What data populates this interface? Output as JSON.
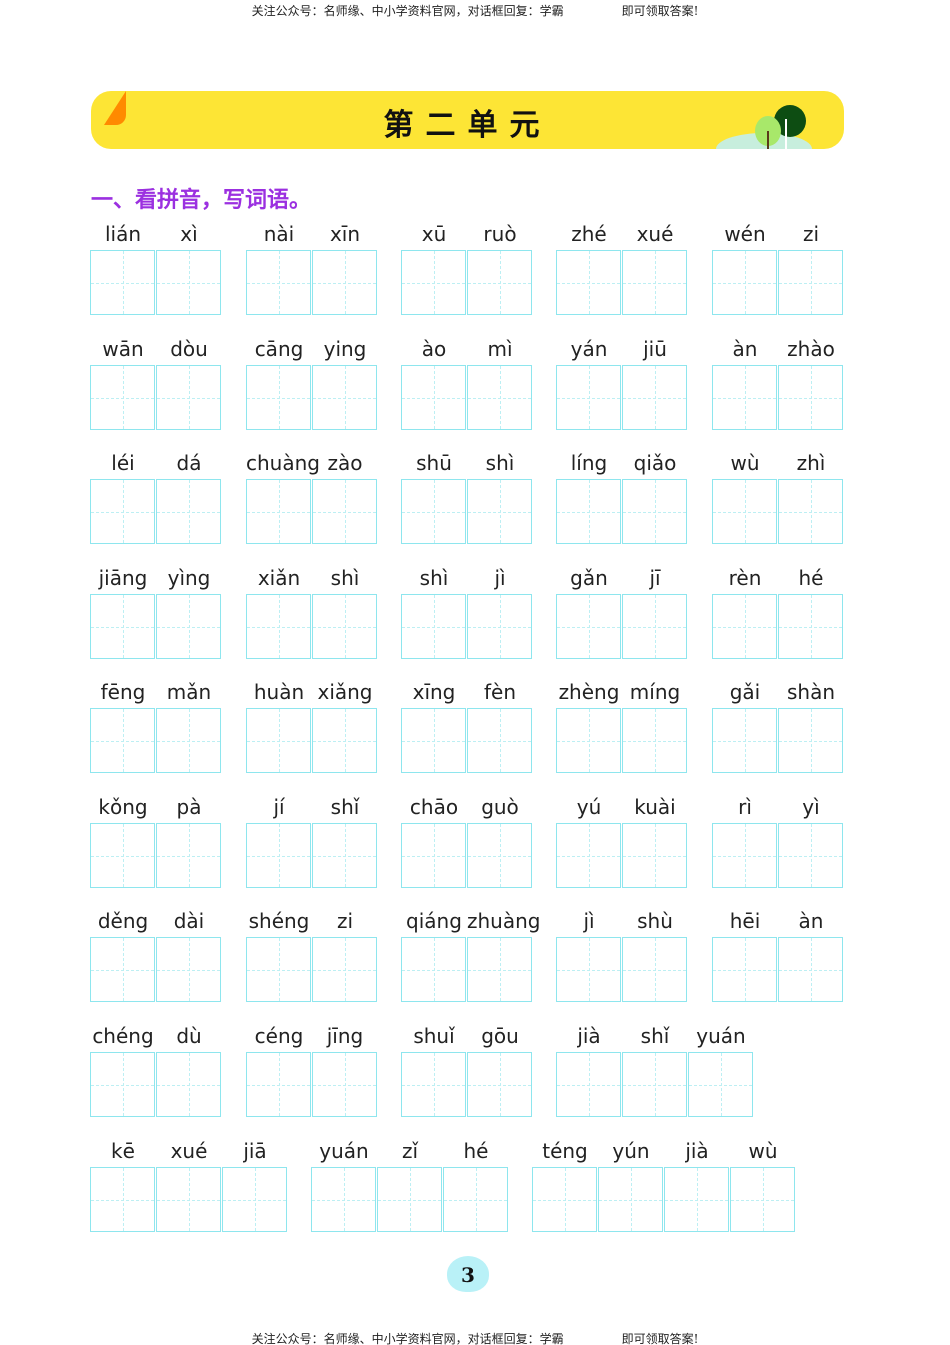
{
  "header_note": {
    "left": "关注公众号：名师缘、中小学资料官网，对话框回复：学霸",
    "right": "即可领取答案!"
  },
  "banner": {
    "title": "第二单元",
    "accent_color": "#fde535"
  },
  "section_title": "一、看拼音，写词语。",
  "rows": [
    [
      [
        "lián",
        "xì"
      ],
      [
        "nài",
        "xīn"
      ],
      [
        "xū",
        "ruò"
      ],
      [
        "zhé",
        "xué"
      ],
      [
        "wén",
        "zi"
      ]
    ],
    [
      [
        "wān",
        "dòu"
      ],
      [
        "cāng",
        "ying"
      ],
      [
        "ào",
        "mì"
      ],
      [
        "yán",
        "jiū"
      ],
      [
        "àn",
        "zhào"
      ]
    ],
    [
      [
        "léi",
        "dá"
      ],
      [
        "chuàng",
        "zào"
      ],
      [
        "shū",
        "shì"
      ],
      [
        "líng",
        "qiǎo"
      ],
      [
        "wù",
        "zhì"
      ]
    ],
    [
      [
        "jiāng",
        "yìng"
      ],
      [
        "xiǎn",
        "shì"
      ],
      [
        "shì",
        "jì"
      ],
      [
        "gǎn",
        "jī"
      ],
      [
        "rèn",
        "hé"
      ]
    ],
    [
      [
        "fēng",
        "mǎn"
      ],
      [
        "huàn",
        "xiǎng"
      ],
      [
        "xīng",
        "fèn"
      ],
      [
        "zhèng",
        "míng"
      ],
      [
        "gǎi",
        "shàn"
      ]
    ],
    [
      [
        "kǒng",
        "pà"
      ],
      [
        "jí",
        "shǐ"
      ],
      [
        "chāo",
        "guò"
      ],
      [
        "yú",
        "kuài"
      ],
      [
        "rì",
        "yì"
      ]
    ],
    [
      [
        "děng",
        "dài"
      ],
      [
        "shéng",
        "zi"
      ],
      [
        "qiáng",
        "zhuàng"
      ],
      [
        "jì",
        "shù"
      ],
      [
        "hēi",
        "àn"
      ]
    ],
    [
      [
        "chéng",
        "dù"
      ],
      [
        "céng",
        "jīng"
      ],
      [
        "shuǐ",
        "gōu"
      ],
      [
        "jià",
        "shǐ",
        "yuán"
      ]
    ],
    [
      [
        "kē",
        "xué",
        "jiā"
      ],
      [
        "yuán",
        "zǐ",
        "hé"
      ],
      [
        "téng",
        "yún",
        "jià",
        "wù"
      ]
    ]
  ],
  "page_number": "3"
}
